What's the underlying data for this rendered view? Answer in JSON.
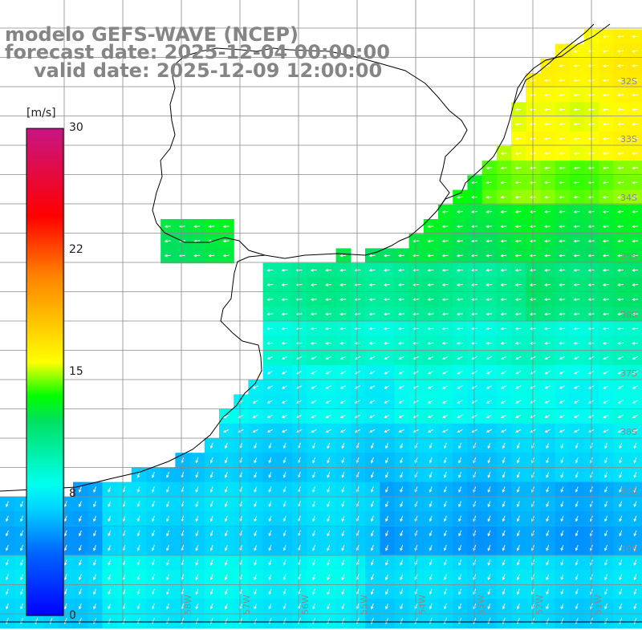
{
  "title": {
    "line1": "modelo GEFS-WAVE (NCEP)",
    "line2": "forecast date: 2025-12-04 00:00:00",
    "line3": "valid date: 2025-12-09 12:00:00"
  },
  "colorbar": {
    "unit": "[m/s]",
    "ticks": [
      "30",
      "22",
      "15",
      "8",
      "0"
    ],
    "tick_values": [
      30,
      22,
      15,
      8,
      0
    ],
    "min": 0,
    "max": 30,
    "stops": [
      "#0000ff",
      "#0066ff",
      "#00d4ff",
      "#00ffee",
      "#00e060",
      "#00ff00",
      "#ffff00",
      "#ff8000",
      "#ff0000",
      "#c71585"
    ]
  },
  "lat_labels": [
    "32S",
    "33S",
    "34S",
    "35S",
    "36S",
    "37S",
    "38S",
    "39S",
    "40S"
  ],
  "lon_labels": [
    "58W",
    "57W",
    "56W",
    "55W",
    "54W",
    "53W",
    "52W",
    "51W"
  ],
  "colors": {
    "background": "#ffffff",
    "grid": "#888888",
    "coast": "#000000",
    "arrows": "#ffffff",
    "title": "#858585"
  }
}
